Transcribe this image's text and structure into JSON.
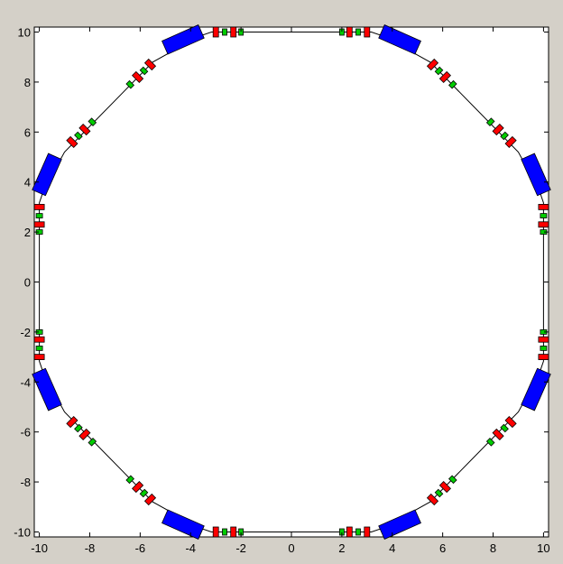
{
  "window": {
    "figure_background": "#d4d0c8",
    "axes_background": "#ffffff"
  },
  "chart_data": {
    "type": "scatter",
    "title": "",
    "xlabel": "",
    "ylabel": "",
    "xlim": [
      -10.2,
      10.2
    ],
    "ylim": [
      -10.2,
      10.2
    ],
    "xticks": [
      -10,
      -8,
      -6,
      -4,
      -2,
      0,
      2,
      4,
      6,
      8,
      10
    ],
    "yticks": [
      -10,
      -8,
      -6,
      -4,
      -2,
      0,
      2,
      4,
      6,
      8,
      10
    ],
    "grid": false,
    "legend": "none",
    "beamline": {
      "color": "#000000",
      "vertices": [
        [
          -3.17,
          10
        ],
        [
          3.17,
          10
        ],
        [
          3.66,
          9.83
        ],
        [
          5.5,
          8.8
        ],
        [
          9.0,
          5.2
        ],
        [
          9.83,
          3.66
        ],
        [
          10,
          3.17
        ],
        [
          10,
          -3.17
        ],
        [
          9.83,
          -3.66
        ],
        [
          9.0,
          -5.2
        ],
        [
          5.5,
          -8.8
        ],
        [
          3.66,
          -9.83
        ],
        [
          3.17,
          -10
        ],
        [
          -3.17,
          -10
        ],
        [
          -3.66,
          -9.83
        ],
        [
          -5.5,
          -8.8
        ],
        [
          -9.0,
          -5.2
        ],
        [
          -9.83,
          -3.66
        ],
        [
          -10,
          -3.17
        ],
        [
          -10,
          3.17
        ],
        [
          -9.83,
          3.66
        ],
        [
          -9.0,
          5.2
        ],
        [
          -5.5,
          8.8
        ],
        [
          -3.66,
          9.83
        ]
      ]
    },
    "elements": {
      "dipole": {
        "color": "#0000ff",
        "centers": [
          [
            4.3,
            9.7
          ],
          [
            9.7,
            4.3
          ],
          [
            9.7,
            -4.3
          ],
          [
            4.3,
            -9.7
          ],
          [
            -4.3,
            -9.7
          ],
          [
            -9.7,
            -4.3
          ],
          [
            -9.7,
            4.3
          ],
          [
            -4.3,
            9.7
          ]
        ]
      },
      "quadrupole": {
        "color": "#ff0000",
        "centers": [
          [
            -3.0,
            10
          ],
          [
            -2.3,
            10
          ],
          [
            2.3,
            10
          ],
          [
            3.0,
            10
          ],
          [
            10,
            3.0
          ],
          [
            10,
            2.3
          ],
          [
            10,
            -2.3
          ],
          [
            10,
            -3.0
          ],
          [
            3.0,
            -10
          ],
          [
            2.3,
            -10
          ],
          [
            -2.3,
            -10
          ],
          [
            -3.0,
            -10
          ],
          [
            -10,
            -3.0
          ],
          [
            -10,
            -2.3
          ],
          [
            -10,
            2.3
          ],
          [
            -10,
            3.0
          ],
          [
            5.6,
            8.7
          ],
          [
            6.1,
            8.2
          ],
          [
            8.2,
            6.1
          ],
          [
            8.7,
            5.6
          ],
          [
            8.7,
            -5.6
          ],
          [
            8.2,
            -6.1
          ],
          [
            6.1,
            -8.2
          ],
          [
            5.6,
            -8.7
          ],
          [
            -5.6,
            -8.7
          ],
          [
            -6.1,
            -8.2
          ],
          [
            -8.2,
            -6.1
          ],
          [
            -8.7,
            -5.6
          ],
          [
            -8.7,
            5.6
          ],
          [
            -8.2,
            6.1
          ],
          [
            -6.1,
            8.2
          ],
          [
            -5.6,
            8.7
          ]
        ]
      },
      "sextupole": {
        "color": "#00cc00",
        "centers": [
          [
            -2.65,
            10
          ],
          [
            -2.0,
            10
          ],
          [
            2.0,
            10
          ],
          [
            2.65,
            10
          ],
          [
            10,
            2.65
          ],
          [
            10,
            2.0
          ],
          [
            10,
            -2.0
          ],
          [
            10,
            -2.65
          ],
          [
            2.65,
            -10
          ],
          [
            2.0,
            -10
          ],
          [
            -2.0,
            -10
          ],
          [
            -2.65,
            -10
          ],
          [
            -10,
            -2.65
          ],
          [
            -10,
            -2.0
          ],
          [
            -10,
            2.0
          ],
          [
            -10,
            2.65
          ],
          [
            5.85,
            8.45
          ],
          [
            6.4,
            7.9
          ],
          [
            7.9,
            6.4
          ],
          [
            8.45,
            5.85
          ],
          [
            8.45,
            -5.85
          ],
          [
            7.9,
            -6.4
          ],
          [
            6.4,
            -7.9
          ],
          [
            5.85,
            -8.45
          ],
          [
            -5.85,
            -8.45
          ],
          [
            -6.4,
            -7.9
          ],
          [
            -7.9,
            -6.4
          ],
          [
            -8.45,
            -5.85
          ],
          [
            -8.45,
            5.85
          ],
          [
            -7.9,
            6.4
          ],
          [
            -6.4,
            7.9
          ],
          [
            -5.85,
            8.45
          ]
        ]
      }
    }
  }
}
